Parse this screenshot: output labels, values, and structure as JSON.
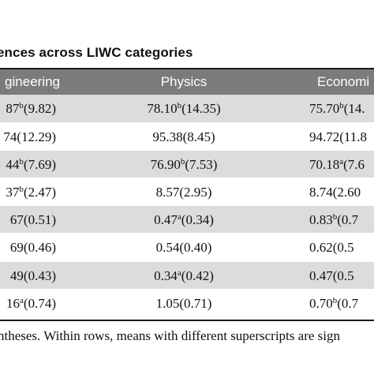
{
  "caption": "ences across LIWC categories",
  "headers": [
    "gineering",
    "Physics",
    "Economi"
  ],
  "rows": [
    {
      "shaded": true,
      "cells": [
        {
          "pre": "87",
          "sup": "b",
          "post": "(9.82)"
        },
        {
          "pre": "78.10",
          "sup": "b",
          "post": "(14.35)"
        },
        {
          "pre": "75.70",
          "sup": "b",
          "post": "(14."
        }
      ]
    },
    {
      "shaded": false,
      "cells": [
        {
          "pre": "74(12.29)",
          "sup": "",
          "post": ""
        },
        {
          "pre": "95.38(8.45)",
          "sup": "",
          "post": ""
        },
        {
          "pre": "94.72(11.8",
          "sup": "",
          "post": ""
        }
      ]
    },
    {
      "shaded": true,
      "cells": [
        {
          "pre": "44",
          "sup": "b",
          "post": "(7.69)"
        },
        {
          "pre": "76.90",
          "sup": "b",
          "post": "(7.53)"
        },
        {
          "pre": "70.18",
          "sup": "a",
          "post": "(7.6"
        }
      ]
    },
    {
      "shaded": false,
      "cells": [
        {
          "pre": "37",
          "sup": "b",
          "post": "(2.47)"
        },
        {
          "pre": "8.57(2.95)",
          "sup": "",
          "post": ""
        },
        {
          "pre": "8.74(2.60",
          "sup": "",
          "post": ""
        }
      ]
    },
    {
      "shaded": true,
      "cells": [
        {
          "pre": "67(0.51)",
          "sup": "",
          "post": ""
        },
        {
          "pre": "0.47",
          "sup": "a",
          "post": "(0.34)"
        },
        {
          "pre": "0.83",
          "sup": "b",
          "post": "(0.7"
        }
      ]
    },
    {
      "shaded": false,
      "cells": [
        {
          "pre": "69(0.46)",
          "sup": "",
          "post": ""
        },
        {
          "pre": "0.54(0.40)",
          "sup": "",
          "post": ""
        },
        {
          "pre": "0.62(0.5",
          "sup": "",
          "post": ""
        }
      ]
    },
    {
      "shaded": true,
      "cells": [
        {
          "pre": "49(0.43)",
          "sup": "",
          "post": ""
        },
        {
          "pre": "0.34",
          "sup": "a",
          "post": "(0.42)"
        },
        {
          "pre": "0.47(0.5",
          "sup": "",
          "post": ""
        }
      ]
    },
    {
      "shaded": false,
      "cells": [
        {
          "pre": "16",
          "sup": "a",
          "post": "(0.74)"
        },
        {
          "pre": "1.05(0.71)",
          "sup": "",
          "post": ""
        },
        {
          "pre": "0.70",
          "sup": "b",
          "post": "(0.7"
        }
      ]
    }
  ],
  "footnote": "ntheses. Within rows, means with different superscripts are sign"
}
